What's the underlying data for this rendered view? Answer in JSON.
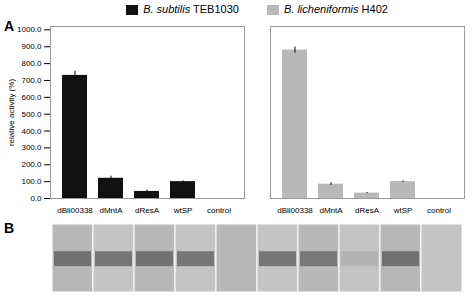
{
  "chart_data": {
    "type": "bar",
    "categories": [
      "dBli00338",
      "dMntA",
      "dResA",
      "wtSP",
      "control"
    ],
    "series": [
      {
        "name": "B. subtilis TEB1030",
        "color": "#111111",
        "values": [
          730,
          120,
          42,
          100,
          0
        ],
        "errors": [
          25,
          12,
          7,
          4,
          0
        ],
        "blot_bands": [
          0.45,
          0.45,
          0.45,
          0.45,
          0.0
        ]
      },
      {
        "name": "B. licheniformis H402",
        "color": "#b8b8b8",
        "values": [
          880,
          85,
          32,
          100,
          0
        ],
        "errors": [
          18,
          8,
          4,
          4,
          0
        ],
        "blot_bands": [
          0.45,
          0.4,
          0.1,
          0.45,
          0.0
        ]
      }
    ],
    "ylabel": "relative activity (%)",
    "ylim": [
      0,
      1020
    ],
    "yticks": [
      {
        "value": 0,
        "label": "0.0"
      },
      {
        "value": 100,
        "label": "100.0"
      },
      {
        "value": 200,
        "label": "200.0"
      },
      {
        "value": 300,
        "label": "300.0"
      },
      {
        "value": 400,
        "label": "400.0"
      },
      {
        "value": 500,
        "label": "500.0"
      },
      {
        "value": 600,
        "label": "600.0"
      },
      {
        "value": 700,
        "label": "700.0"
      },
      {
        "value": 800,
        "label": "800.0"
      },
      {
        "value": 900,
        "label": "900.0"
      },
      {
        "value": 1000,
        "label": "1000.0"
      }
    ],
    "grid": false,
    "legend": "top",
    "annotations": [
      "A",
      "B"
    ]
  }
}
